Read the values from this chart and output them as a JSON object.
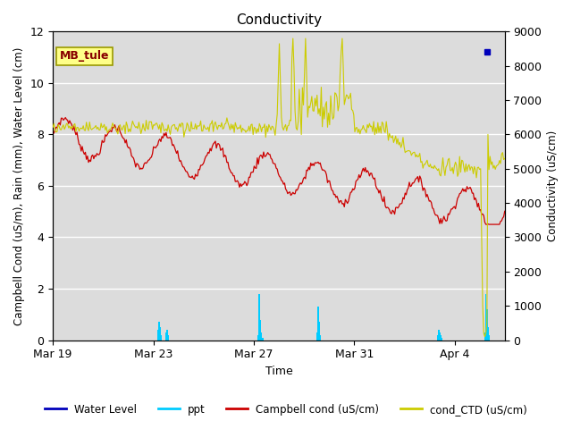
{
  "title": "Conductivity",
  "xlabel": "Time",
  "ylabel_left": "Campbell Cond (uS/m), Rain (mm), Water Level (cm)",
  "ylabel_right": "Conductivity (uS/cm)",
  "xlim_days": [
    0,
    18
  ],
  "ylim_left": [
    0,
    12
  ],
  "ylim_right": [
    0,
    9000
  ],
  "yticks_left": [
    0,
    2,
    4,
    6,
    8,
    10,
    12
  ],
  "yticks_right": [
    0,
    1000,
    2000,
    3000,
    4000,
    5000,
    6000,
    7000,
    8000,
    9000
  ],
  "xtick_labels": [
    "Mar 19",
    "Mar 23",
    "Mar 27",
    "Mar 31",
    "Apr 4"
  ],
  "xtick_positions": [
    0,
    4,
    8,
    12,
    16
  ],
  "annotation_label": "MB_tule",
  "background_color": "#dcdcdc",
  "outer_background": "#ffffff",
  "legend_entries": [
    "Water Level",
    "ppt",
    "Campbell cond (uS/cm)",
    "cond_CTD (uS/cm)"
  ],
  "legend_colors": [
    "#0000cc",
    "#00ccff",
    "#cc0000",
    "#cccc00"
  ]
}
